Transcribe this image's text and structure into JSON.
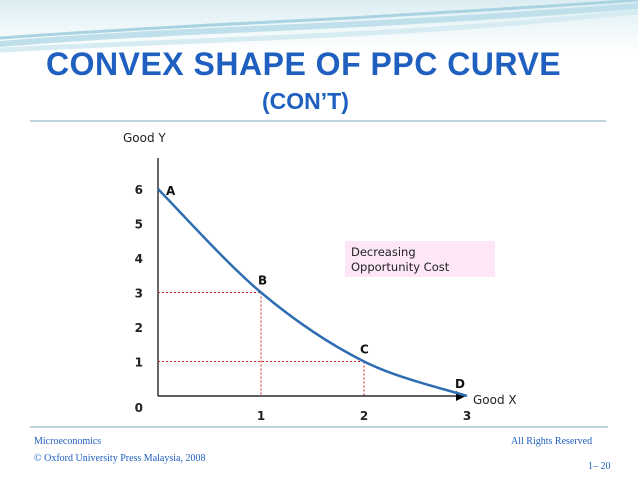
{
  "slide": {
    "title": "CONVEX SHAPE OF PPC CURVE",
    "subtitle": "(CON’T)",
    "accent_color": "#1f5fbf",
    "rule_color": "#7fa7b7"
  },
  "footer": {
    "course": "Microeconomics",
    "copyright": "© Oxford University Press Malaysia, 2008",
    "rights": "All Rights Reserved",
    "page": "1– 20"
  },
  "chart_data": {
    "type": "line",
    "title": "",
    "xlabel": "Good X",
    "ylabel": "Good Y",
    "xlim": [
      0,
      3
    ],
    "ylim": [
      0,
      6
    ],
    "x_ticks": [
      "0",
      "1",
      "2",
      "3"
    ],
    "y_ticks": [
      "0",
      "1",
      "2",
      "3",
      "4",
      "5",
      "6"
    ],
    "curve": [
      {
        "x": 0,
        "y": 6
      },
      {
        "x": 1,
        "y": 3
      },
      {
        "x": 2,
        "y": 1
      },
      {
        "x": 3,
        "y": 0
      }
    ],
    "points": [
      {
        "label": "A",
        "x": 0,
        "y": 6
      },
      {
        "label": "B",
        "x": 1,
        "y": 3
      },
      {
        "label": "C",
        "x": 2,
        "y": 1
      },
      {
        "label": "D",
        "x": 3,
        "y": 0
      }
    ],
    "annotation": "Decreasing\nOpportunity Cost",
    "grid": false,
    "curve_color": "#2f6db3",
    "guide_color": "#cc2222",
    "annotation_bg": "#fde6f7"
  }
}
